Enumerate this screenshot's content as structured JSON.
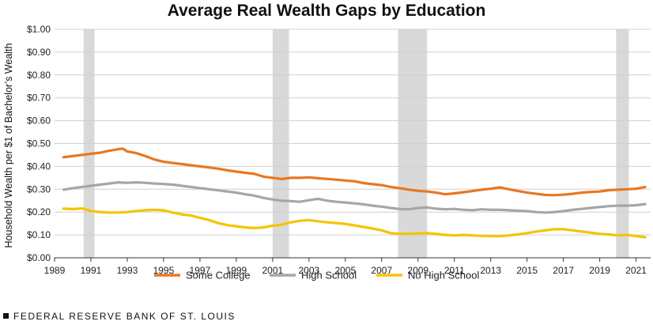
{
  "chart_data": {
    "type": "line",
    "title": "Average Real Wealth Gaps by Education",
    "ylabel": "Household Wealth per $1 of Bachelor’s Wealth",
    "xlabel": "",
    "xlim": [
      1989,
      2021.8
    ],
    "ylim": [
      0,
      1
    ],
    "yticks": [
      0,
      0.1,
      0.2,
      0.3,
      0.4,
      0.5,
      0.6,
      0.7,
      0.8,
      0.9,
      1.0
    ],
    "ytick_labels": [
      "$0.00",
      "$0.10",
      "$0.20",
      "$0.30",
      "$0.40",
      "$0.50",
      "$0.60",
      "$0.70",
      "$0.80",
      "$0.90",
      "$1.00"
    ],
    "xticks": [
      1989,
      1991,
      1993,
      1995,
      1997,
      1999,
      2001,
      2003,
      2005,
      2007,
      2009,
      2011,
      2013,
      2015,
      2017,
      2019,
      2021
    ],
    "xtick_labels": [
      "1989",
      "1991",
      "1993",
      "1995",
      "1997",
      "1999",
      "2001",
      "2003",
      "2005",
      "2007",
      "2009",
      "2011",
      "2013",
      "2015",
      "2017",
      "2019",
      "2021"
    ],
    "recessions": [
      [
        1990.6,
        1991.2
      ],
      [
        2001.0,
        2001.9
      ],
      [
        2007.9,
        2009.5
      ],
      [
        2019.9,
        2020.6
      ]
    ],
    "grid": "horizontal",
    "legend_position": "bottom",
    "series": [
      {
        "name": "Some College",
        "color": "#e87722",
        "x": [
          1989.5,
          1990,
          1990.5,
          1991,
          1991.5,
          1992,
          1992.5,
          1992.75,
          1993,
          1993.5,
          1994,
          1994.5,
          1995,
          1995.5,
          1996,
          1996.5,
          1997,
          1997.5,
          1998,
          1998.5,
          1999,
          1999.5,
          2000,
          2000.5,
          2001,
          2001.5,
          2002,
          2002.5,
          2003,
          2003.5,
          2004,
          2004.5,
          2005,
          2005.5,
          2006,
          2006.5,
          2007,
          2007.5,
          2008,
          2008.5,
          2009,
          2009.5,
          2010,
          2010.5,
          2011,
          2011.5,
          2012,
          2012.5,
          2013,
          2013.5,
          2014,
          2014.5,
          2015,
          2015.5,
          2016,
          2016.5,
          2017,
          2017.5,
          2018,
          2018.5,
          2019,
          2019.5,
          2020,
          2020.5,
          2021,
          2021.5
        ],
        "values": [
          0.44,
          0.445,
          0.45,
          0.455,
          0.46,
          0.468,
          0.475,
          0.478,
          0.465,
          0.458,
          0.445,
          0.43,
          0.42,
          0.415,
          0.41,
          0.405,
          0.4,
          0.395,
          0.39,
          0.383,
          0.377,
          0.372,
          0.367,
          0.355,
          0.35,
          0.345,
          0.35,
          0.35,
          0.352,
          0.348,
          0.345,
          0.342,
          0.338,
          0.335,
          0.327,
          0.322,
          0.318,
          0.31,
          0.305,
          0.298,
          0.293,
          0.29,
          0.285,
          0.278,
          0.282,
          0.287,
          0.292,
          0.298,
          0.302,
          0.308,
          0.3,
          0.292,
          0.285,
          0.28,
          0.275,
          0.274,
          0.276,
          0.28,
          0.285,
          0.288,
          0.29,
          0.296,
          0.298,
          0.3,
          0.302,
          0.31
        ]
      },
      {
        "name": "High School",
        "color": "#a6a6a6",
        "x": [
          1989.5,
          1990,
          1990.5,
          1991,
          1991.5,
          1992,
          1992.5,
          1993,
          1993.5,
          1994,
          1994.5,
          1995,
          1995.5,
          1996,
          1996.5,
          1997,
          1997.5,
          1998,
          1998.5,
          1999,
          1999.5,
          2000,
          2000.5,
          2001,
          2001.5,
          2002,
          2002.5,
          2003,
          2003.5,
          2004,
          2004.5,
          2005,
          2005.5,
          2006,
          2006.5,
          2007,
          2007.5,
          2008,
          2008.5,
          2009,
          2009.5,
          2010,
          2010.5,
          2011,
          2011.5,
          2012,
          2012.5,
          2013,
          2013.5,
          2014,
          2014.5,
          2015,
          2015.5,
          2016,
          2016.5,
          2017,
          2017.5,
          2018,
          2018.5,
          2019,
          2019.5,
          2020,
          2020.5,
          2021,
          2021.5
        ],
        "values": [
          0.298,
          0.305,
          0.31,
          0.315,
          0.32,
          0.325,
          0.33,
          0.328,
          0.33,
          0.328,
          0.325,
          0.323,
          0.32,
          0.315,
          0.31,
          0.305,
          0.3,
          0.295,
          0.29,
          0.285,
          0.278,
          0.272,
          0.262,
          0.255,
          0.25,
          0.248,
          0.245,
          0.252,
          0.258,
          0.25,
          0.245,
          0.242,
          0.238,
          0.234,
          0.228,
          0.224,
          0.218,
          0.213,
          0.212,
          0.218,
          0.22,
          0.215,
          0.212,
          0.214,
          0.21,
          0.208,
          0.212,
          0.21,
          0.21,
          0.208,
          0.206,
          0.204,
          0.2,
          0.198,
          0.2,
          0.204,
          0.21,
          0.214,
          0.218,
          0.222,
          0.226,
          0.228,
          0.228,
          0.23,
          0.235
        ]
      },
      {
        "name": "No High School",
        "color": "#f5c400",
        "x": [
          1989.5,
          1990,
          1990.5,
          1991,
          1991.5,
          1992,
          1992.5,
          1993,
          1993.5,
          1994,
          1994.5,
          1995,
          1995.5,
          1996,
          1996.5,
          1997,
          1997.5,
          1998,
          1998.5,
          1999,
          1999.5,
          2000,
          2000.5,
          2001,
          2001.5,
          2002,
          2002.5,
          2003,
          2003.5,
          2004,
          2004.5,
          2005,
          2005.5,
          2006,
          2006.5,
          2007,
          2007.5,
          2008,
          2008.5,
          2009,
          2009.5,
          2010,
          2010.5,
          2011,
          2011.5,
          2012,
          2012.5,
          2013,
          2013.5,
          2014,
          2014.5,
          2015,
          2015.5,
          2016,
          2016.5,
          2017,
          2017.5,
          2018,
          2018.5,
          2019,
          2019.5,
          2020,
          2020.5,
          2021,
          2021.5
        ],
        "values": [
          0.215,
          0.213,
          0.216,
          0.205,
          0.2,
          0.198,
          0.198,
          0.2,
          0.205,
          0.208,
          0.21,
          0.208,
          0.198,
          0.19,
          0.185,
          0.175,
          0.165,
          0.152,
          0.143,
          0.138,
          0.133,
          0.13,
          0.133,
          0.14,
          0.145,
          0.155,
          0.162,
          0.165,
          0.16,
          0.155,
          0.152,
          0.148,
          0.142,
          0.135,
          0.128,
          0.12,
          0.108,
          0.105,
          0.105,
          0.107,
          0.108,
          0.104,
          0.1,
          0.098,
          0.1,
          0.098,
          0.096,
          0.095,
          0.094,
          0.098,
          0.102,
          0.108,
          0.115,
          0.12,
          0.125,
          0.125,
          0.12,
          0.115,
          0.11,
          0.105,
          0.102,
          0.098,
          0.1,
          0.095,
          0.09
        ]
      }
    ]
  },
  "footer": {
    "text": "FEDERAL RESERVE BANK OF ST. LOUIS"
  }
}
